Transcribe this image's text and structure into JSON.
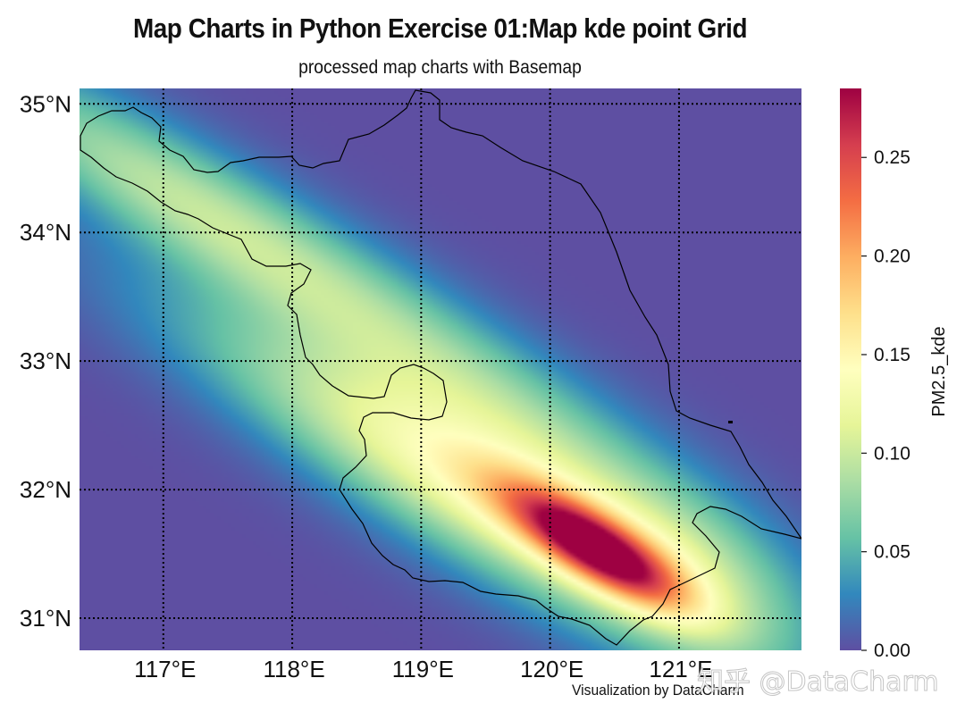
{
  "title": "Map Charts in Python Exercise 01:Map kde point Grid",
  "subtitle": "processed map charts with Basemap",
  "credit": "Visualization by DataCharm",
  "watermark": "知乎 @DataCharm",
  "chart_data": {
    "type": "heatmap",
    "projection": "Basemap",
    "x_range": [
      116.35,
      121.95
    ],
    "y_range": [
      30.75,
      35.12
    ],
    "x_ticks": [
      117,
      118,
      119,
      120,
      121
    ],
    "x_tick_labels": [
      "117°E",
      "118°E",
      "119°E",
      "120°E",
      "121°E"
    ],
    "y_ticks": [
      31,
      32,
      33,
      34,
      35
    ],
    "y_tick_labels": [
      "31°N",
      "32°N",
      "33°N",
      "34°N",
      "35°N"
    ],
    "grid": "dotted",
    "kde_field": {
      "name": "PM2.5_kde",
      "peak": {
        "lon": 120.35,
        "lat": 31.55,
        "value": 0.28
      },
      "ridge": "northwest–southeast band from ~116.5°E 34.6°N to ~121.3°E 31.2°N"
    },
    "colorbar": {
      "label": "PM2.5_kde",
      "colormap": "Spectral_r",
      "range": [
        0.0,
        0.285
      ],
      "ticks": [
        0.0,
        0.05,
        0.1,
        0.15,
        0.2,
        0.25
      ],
      "tick_labels": [
        "0.00",
        "0.05",
        "0.10",
        "0.15",
        "0.20",
        "0.25"
      ]
    }
  }
}
